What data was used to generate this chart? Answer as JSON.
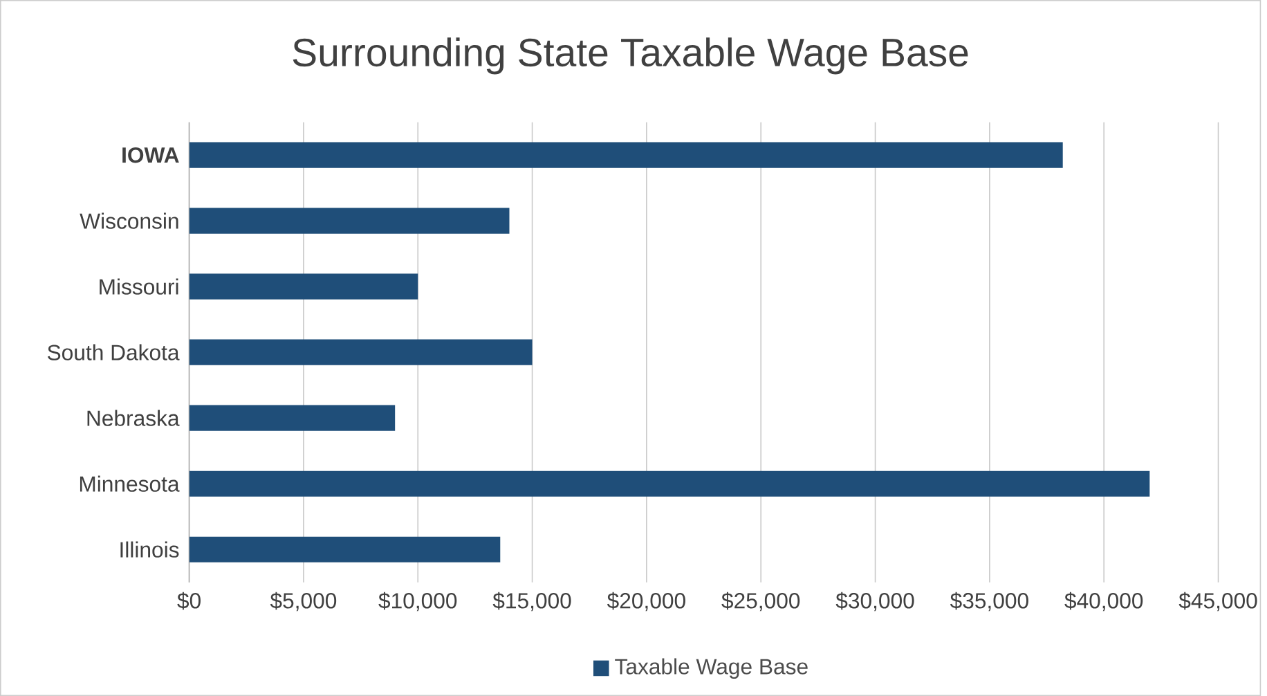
{
  "chart_data": {
    "type": "bar",
    "orientation": "horizontal",
    "title": "Surrounding State Taxable Wage Base",
    "categories": [
      "**IOWA**",
      "Wisconsin",
      "Missouri",
      "South Dakota",
      "Nebraska",
      "Minnesota",
      "Illinois"
    ],
    "series": [
      {
        "name": "Taxable Wage Base",
        "color": "#1f4e79",
        "values": [
          38200,
          14000,
          10000,
          15000,
          9000,
          42000,
          13600
        ]
      }
    ],
    "xlim": [
      0,
      45000
    ],
    "xticks": [
      {
        "value": 0,
        "label": "$0"
      },
      {
        "value": 5000,
        "label": "$5,000"
      },
      {
        "value": 10000,
        "label": "$10,000"
      },
      {
        "value": 15000,
        "label": "$15,000"
      },
      {
        "value": 20000,
        "label": "$20,000"
      },
      {
        "value": 25000,
        "label": "$25,000"
      },
      {
        "value": 30000,
        "label": "$30,000"
      },
      {
        "value": 35000,
        "label": "$35,000"
      },
      {
        "value": 40000,
        "label": "$40,000"
      },
      {
        "value": 45000,
        "label": "$45,000"
      }
    ],
    "grid": "x",
    "legend": "bottom"
  }
}
